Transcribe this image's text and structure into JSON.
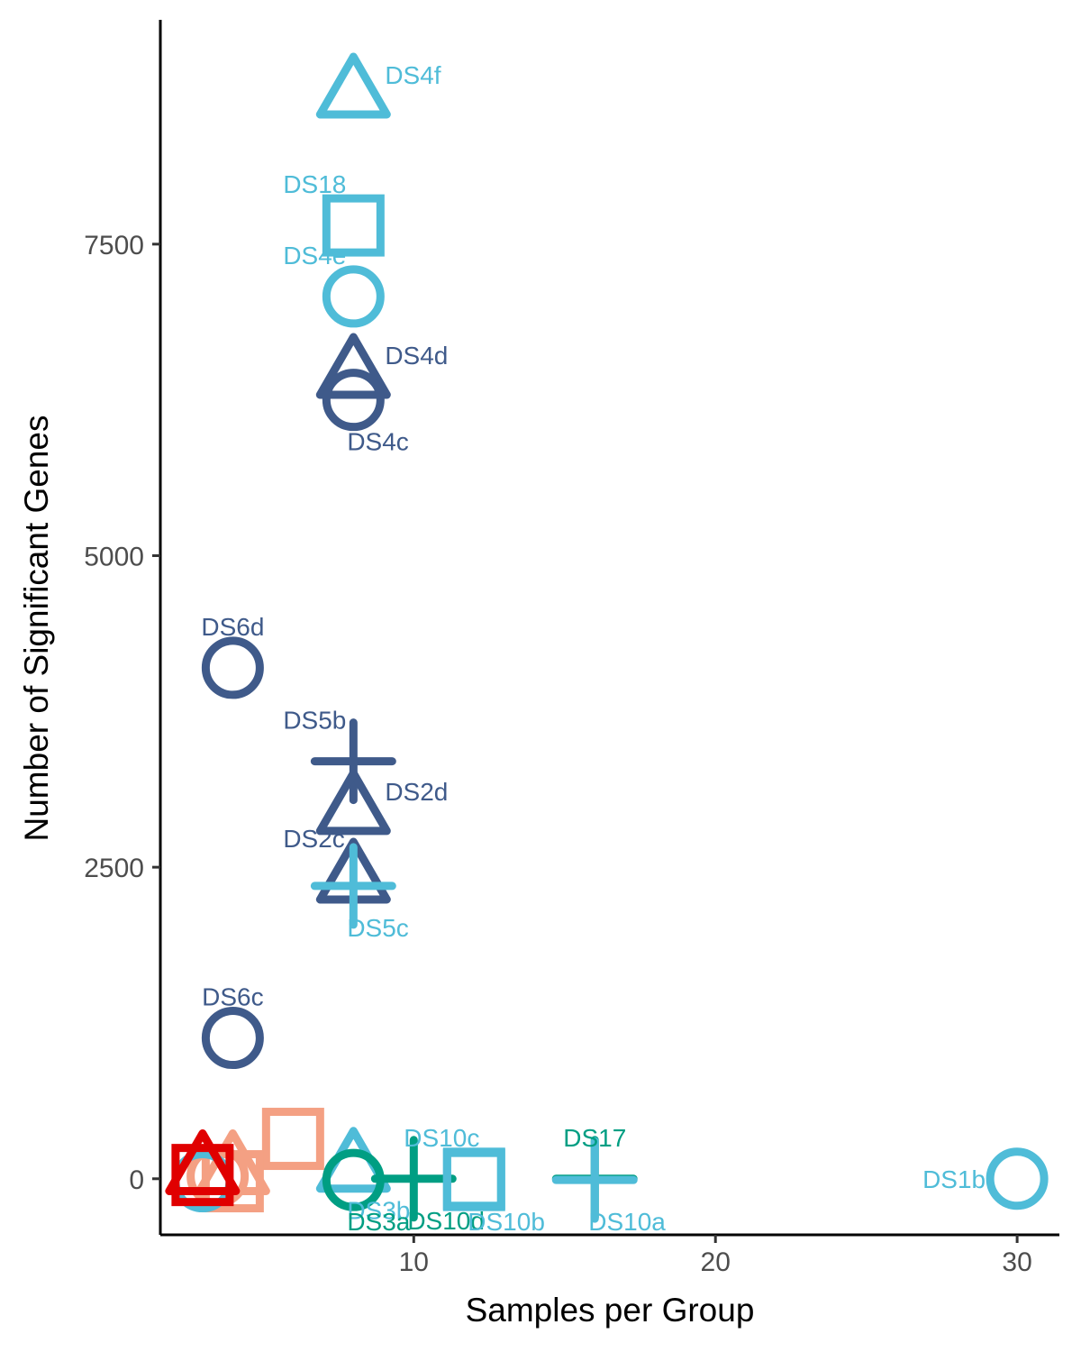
{
  "colors": {
    "dark_blue": "#3F5A8A",
    "light_blue": "#4FBCD8",
    "teal": "#009E83",
    "salmon": "#F4A083",
    "red": "#E00000"
  },
  "chart_data": {
    "type": "scatter",
    "title": "",
    "xlabel": "Samples per Group",
    "ylabel": "Number of Significant Genes",
    "xlim": [
      1.6,
      31.4
    ],
    "ylim": [
      -450,
      9300
    ],
    "x_ticks": [
      10,
      20,
      30
    ],
    "y_ticks": [
      0,
      2500,
      5000,
      7500
    ],
    "x_tick_labels": [
      "10",
      "20",
      "30"
    ],
    "y_tick_labels": [
      "0",
      "2500",
      "5000",
      "7500"
    ],
    "grid": false,
    "legend": "none",
    "points": [
      {
        "label": "DS4f",
        "x": 8,
        "y": 8700,
        "shape": "triangle",
        "color": "light_blue",
        "label_pos": "right"
      },
      {
        "label": "DS18",
        "x": 8,
        "y": 7650,
        "shape": "square",
        "color": "light_blue",
        "label_pos": "top-left"
      },
      {
        "label": "DS4e",
        "x": 8,
        "y": 7080,
        "shape": "circle",
        "color": "light_blue",
        "label_pos": "top-left"
      },
      {
        "label": "DS4d",
        "x": 8,
        "y": 6450,
        "shape": "triangle",
        "color": "dark_blue",
        "label_pos": "right"
      },
      {
        "label": "DS4c",
        "x": 8,
        "y": 6250,
        "shape": "circle",
        "color": "dark_blue",
        "label_pos": "bottom-right"
      },
      {
        "label": "DS6d",
        "x": 4,
        "y": 4100,
        "shape": "circle",
        "color": "dark_blue",
        "label_pos": "top"
      },
      {
        "label": "DS5b",
        "x": 8,
        "y": 3350,
        "shape": "plus",
        "color": "dark_blue",
        "label_pos": "top-left"
      },
      {
        "label": "DS2d",
        "x": 8,
        "y": 2950,
        "shape": "triangle",
        "color": "dark_blue",
        "label_pos": "right"
      },
      {
        "label": "DS2c",
        "x": 8,
        "y": 2400,
        "shape": "triangle",
        "color": "dark_blue",
        "label_pos": "top-left"
      },
      {
        "label": "DS5c",
        "x": 8,
        "y": 2350,
        "shape": "plus",
        "color": "light_blue",
        "label_pos": "bottom-right"
      },
      {
        "label": "DS6c",
        "x": 4,
        "y": 1130,
        "shape": "circle",
        "color": "dark_blue",
        "label_pos": "top"
      },
      {
        "label": "",
        "x": 6,
        "y": 320,
        "shape": "square",
        "color": "salmon",
        "label_pos": "none"
      },
      {
        "label": "",
        "x": 4,
        "y": 60,
        "shape": "triangle",
        "color": "salmon",
        "label_pos": "none"
      },
      {
        "label": "",
        "x": 4,
        "y": -20,
        "shape": "square",
        "color": "salmon",
        "label_pos": "none"
      },
      {
        "label": "",
        "x": 3.5,
        "y": 20,
        "shape": "circle",
        "color": "salmon",
        "label_pos": "none"
      },
      {
        "label": "",
        "x": 3,
        "y": -20,
        "shape": "circle",
        "color": "light_blue",
        "label_pos": "none"
      },
      {
        "label": "",
        "x": 3,
        "y": 30,
        "shape": "square",
        "color": "red",
        "label_pos": "none"
      },
      {
        "label": "",
        "x": 3,
        "y": 60,
        "shape": "triangle",
        "color": "red",
        "label_pos": "none"
      },
      {
        "label": "DS3b",
        "x": 8,
        "y": 80,
        "shape": "triangle",
        "color": "light_blue",
        "label_pos": "bottom-right"
      },
      {
        "label": "DS3a",
        "x": 8,
        "y": -10,
        "shape": "circle",
        "color": "teal",
        "label_pos": "bottom-right"
      },
      {
        "label": "DS10d",
        "x": 10,
        "y": 0,
        "shape": "plus",
        "color": "teal",
        "label_pos": "bottom-right"
      },
      {
        "label": "DS10c",
        "x": 12,
        "y": 0,
        "shape": "square",
        "color": "light_blue",
        "label_pos": "top-left"
      },
      {
        "label": "DS10b",
        "x": 12,
        "y": -10,
        "shape": "square",
        "color": "light_blue",
        "label_pos": "bottom-right"
      },
      {
        "label": "DS17",
        "x": 16,
        "y": 0,
        "shape": "plus",
        "color": "teal",
        "label_pos": "top"
      },
      {
        "label": "DS10a",
        "x": 16,
        "y": -10,
        "shape": "plus",
        "color": "light_blue",
        "label_pos": "bottom-right"
      },
      {
        "label": "DS1b",
        "x": 30,
        "y": 0,
        "shape": "circle",
        "color": "light_blue",
        "label_pos": "left"
      }
    ]
  }
}
